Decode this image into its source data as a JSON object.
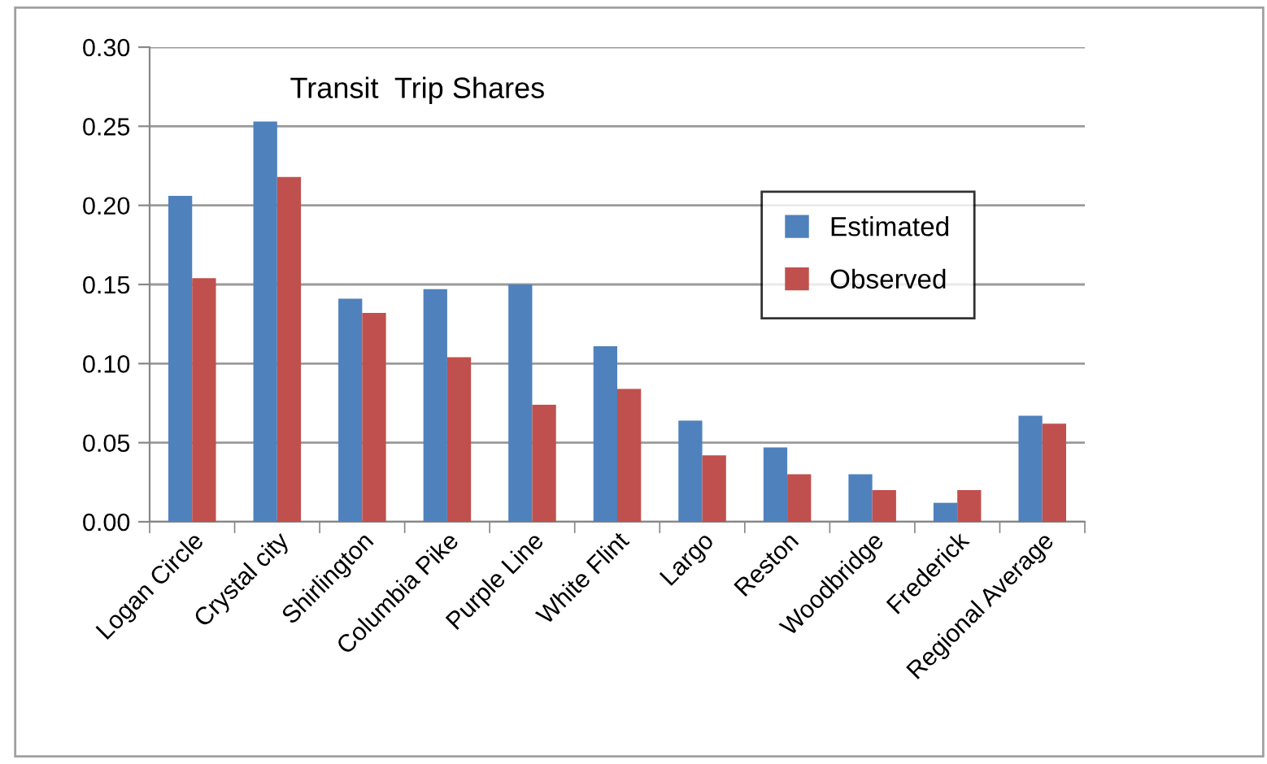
{
  "chart_data": {
    "type": "bar",
    "title": "Transit  Trip Shares",
    "categories": [
      "Logan Circle",
      "Crystal city",
      "Shirlington",
      "Columbia Pike",
      "Purple Line",
      "White Flint",
      "Largo",
      "Reston",
      "Woodbridge",
      "Frederick",
      "Regional Average"
    ],
    "series": [
      {
        "name": "Estimated",
        "color": "#4f81bd",
        "values": [
          0.206,
          0.253,
          0.141,
          0.147,
          0.15,
          0.111,
          0.064,
          0.047,
          0.03,
          0.012,
          0.067
        ]
      },
      {
        "name": "Observed",
        "color": "#c0504d",
        "values": [
          0.154,
          0.218,
          0.132,
          0.104,
          0.074,
          0.084,
          0.042,
          0.03,
          0.02,
          0.02,
          0.062
        ]
      }
    ],
    "ylim": [
      0,
      0.3
    ],
    "yticks": [
      {
        "value": 0,
        "label": "0.00"
      },
      {
        "value": 0.05,
        "label": "0.05"
      },
      {
        "value": 0.1,
        "label": "0.10"
      },
      {
        "value": 0.15,
        "label": "0.15"
      },
      {
        "value": 0.2,
        "label": "0.20"
      },
      {
        "value": 0.25,
        "label": "0.25"
      },
      {
        "value": 0.3,
        "label": "0.30"
      }
    ],
    "grid": "y",
    "legend": "right"
  }
}
